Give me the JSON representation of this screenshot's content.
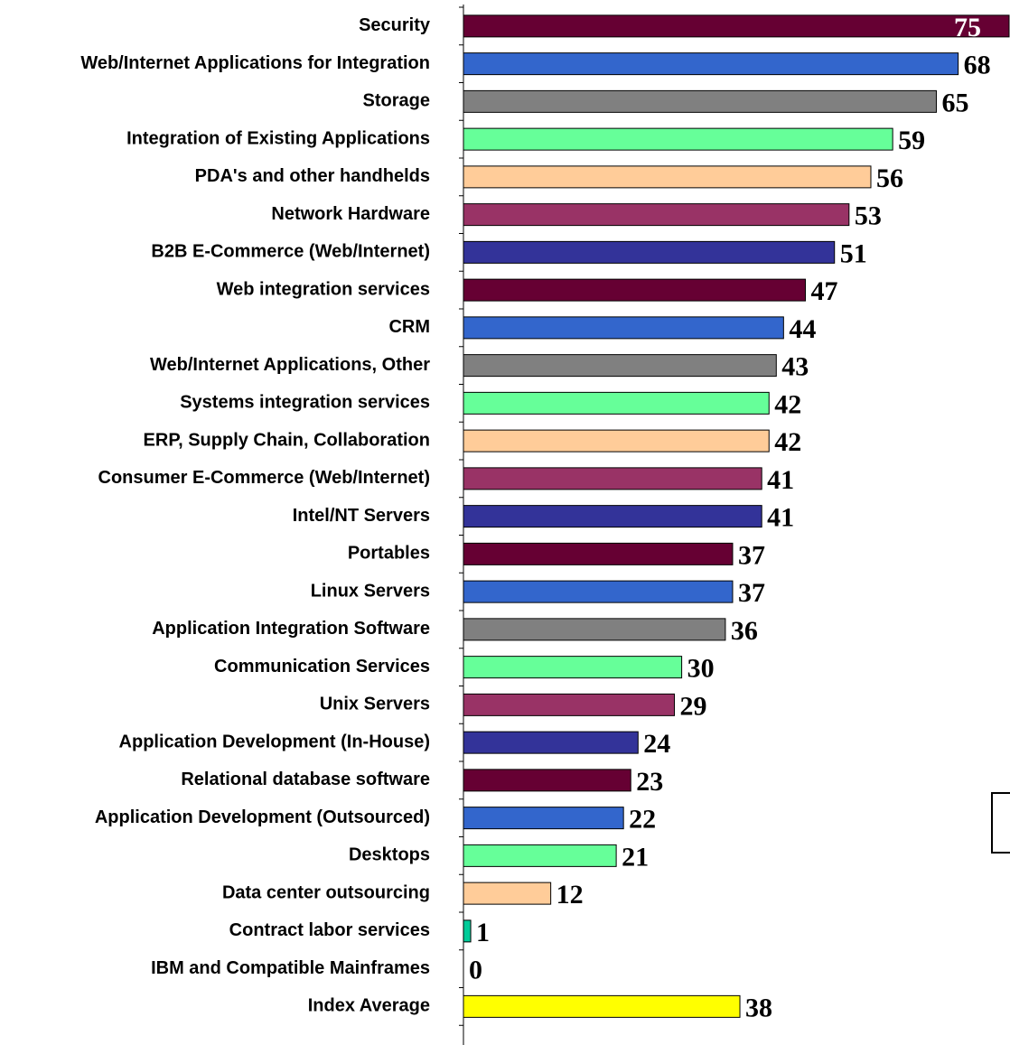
{
  "chart_data": {
    "type": "bar",
    "orientation": "horizontal",
    "categories": [
      "Security",
      "Web/Internet Applications for Integration",
      "Storage",
      "Integration of Existing Applications",
      "PDA's and other handhelds",
      "Network Hardware",
      "B2B E-Commerce (Web/Internet)",
      "Web integration services",
      "CRM",
      "Web/Internet Applications, Other",
      "Systems integration services",
      "ERP, Supply Chain, Collaboration",
      "Consumer E-Commerce (Web/Internet)",
      "Intel/NT Servers",
      "Portables",
      "Linux Servers",
      "Application Integration Software",
      "Communication Services",
      "Unix Servers",
      "Application Development (In-House)",
      "Relational database software",
      "Application Development (Outsourced)",
      "Desktops",
      "Data center outsourcing",
      "Contract labor services",
      "IBM and Compatible Mainframes",
      "Index Average"
    ],
    "values": [
      75,
      68,
      65,
      59,
      56,
      53,
      51,
      47,
      44,
      43,
      42,
      42,
      41,
      41,
      37,
      37,
      36,
      30,
      29,
      24,
      23,
      22,
      21,
      12,
      1,
      0,
      38
    ],
    "colors": [
      "#660033",
      "#3366cc",
      "#808080",
      "#66ff99",
      "#ffcc99",
      "#993366",
      "#333399",
      "#660033",
      "#3366cc",
      "#808080",
      "#66ff99",
      "#ffcc99",
      "#993366",
      "#333399",
      "#660033",
      "#3366cc",
      "#808080",
      "#66ff99",
      "#993366",
      "#333399",
      "#660033",
      "#3366cc",
      "#66ff99",
      "#ffcc99",
      "#00cc99",
      "#ffffff",
      "#ffff00"
    ]
  }
}
